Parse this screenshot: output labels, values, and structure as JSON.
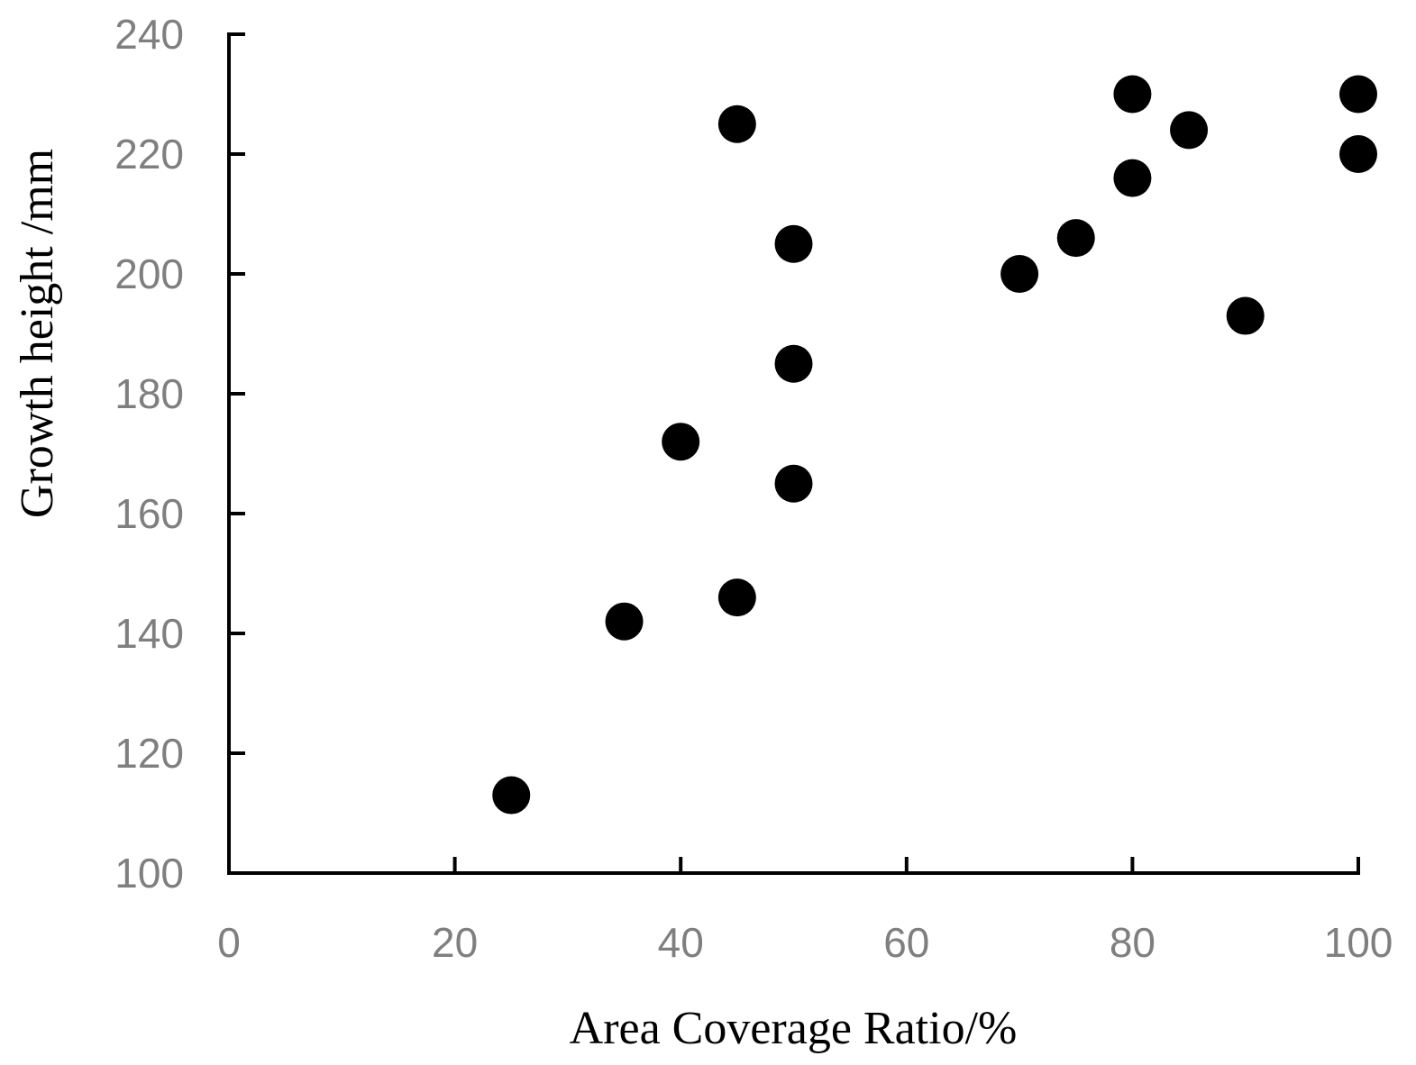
{
  "chart_data": {
    "type": "scatter",
    "title": "",
    "xlabel": "Area Coverage Ratio/%",
    "ylabel": "Growth height /mm",
    "xlim": [
      0,
      100
    ],
    "ylim": [
      100,
      240
    ],
    "x_ticks": [
      0,
      20,
      40,
      60,
      80,
      100
    ],
    "y_ticks": [
      100,
      120,
      140,
      160,
      180,
      200,
      220,
      240
    ],
    "grid": false,
    "legend": "none",
    "marker_color": "#000000",
    "axis_color": "#000000",
    "tick_label_color": "#7f7f7f",
    "series": [
      {
        "points": [
          {
            "x": 25,
            "y": 113
          },
          {
            "x": 35,
            "y": 142
          },
          {
            "x": 40,
            "y": 172
          },
          {
            "x": 45,
            "y": 146
          },
          {
            "x": 45,
            "y": 225
          },
          {
            "x": 50,
            "y": 165
          },
          {
            "x": 50,
            "y": 185
          },
          {
            "x": 50,
            "y": 205
          },
          {
            "x": 70,
            "y": 200
          },
          {
            "x": 75,
            "y": 206
          },
          {
            "x": 80,
            "y": 216
          },
          {
            "x": 80,
            "y": 230
          },
          {
            "x": 85,
            "y": 224
          },
          {
            "x": 90,
            "y": 193
          },
          {
            "x": 100,
            "y": 220
          },
          {
            "x": 100,
            "y": 230
          }
        ]
      }
    ]
  }
}
